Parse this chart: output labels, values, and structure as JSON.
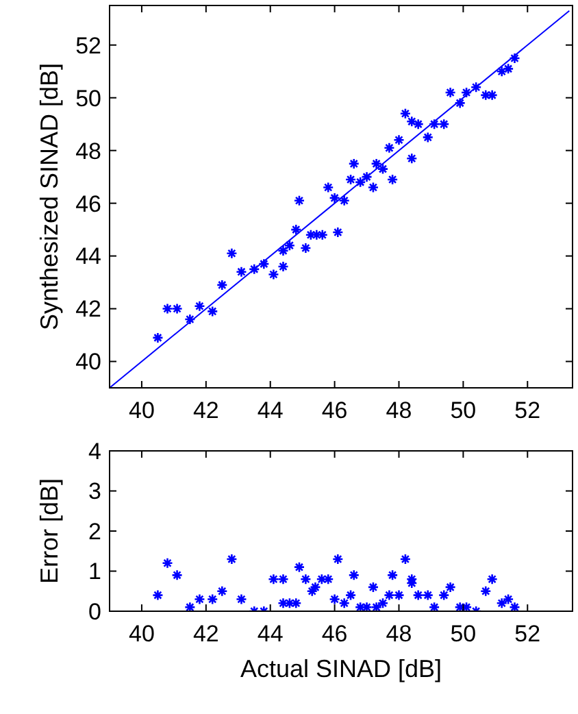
{
  "chart_data": [
    {
      "type": "scatter",
      "ylabel": "Synthesized SINAD [dB]",
      "xlim": [
        39,
        53.4
      ],
      "ylim": [
        39,
        53.5
      ],
      "xticks": [
        40,
        42,
        44,
        46,
        48,
        50,
        52
      ],
      "yticks": [
        40,
        42,
        44,
        46,
        48,
        50,
        52
      ],
      "series": [
        {
          "color": "#0000ff",
          "marker": "cross",
          "x": [
            40.5,
            40.8,
            41.1,
            41.5,
            41.8,
            42.2,
            42.5,
            42.8,
            43.1,
            43.5,
            43.8,
            44.1,
            44.4,
            44.4,
            44.6,
            44.8,
            44.9,
            45.1,
            45.26,
            45.44,
            45.62,
            45.8,
            46.0,
            46.1,
            46.3,
            46.5,
            46.6,
            46.8,
            47.0,
            47.2,
            47.3,
            47.5,
            47.7,
            47.8,
            48.0,
            48.2,
            48.4,
            48.4,
            48.6,
            48.9,
            49.1,
            49.4,
            49.6,
            49.9,
            50.1,
            50.4,
            50.7,
            50.9,
            51.2,
            51.4,
            51.6
          ],
          "values": [
            40.9,
            42.0,
            42.0,
            41.6,
            42.1,
            41.9,
            42.9,
            44.1,
            43.4,
            43.5,
            43.7,
            43.3,
            43.6,
            44.2,
            44.4,
            45.0,
            46.1,
            44.3,
            44.8,
            44.8,
            44.8,
            46.6,
            46.2,
            44.9,
            46.1,
            46.9,
            47.5,
            46.8,
            47.0,
            46.6,
            47.5,
            47.3,
            48.1,
            46.9,
            48.4,
            49.4,
            49.1,
            47.7,
            49.0,
            48.5,
            49.0,
            49.0,
            50.2,
            49.8,
            50.2,
            50.4,
            50.1,
            50.1,
            51.0,
            51.1,
            51.5
          ]
        },
        {
          "type": "line",
          "color": "#0000ff",
          "marker": "none",
          "x": [
            39,
            53.3
          ],
          "values": [
            39,
            53.3
          ]
        }
      ]
    },
    {
      "type": "scatter",
      "xlabel": "Actual SINAD [dB]",
      "ylabel": "Error [dB]",
      "xlim": [
        39,
        53.4
      ],
      "ylim": [
        0,
        4
      ],
      "xticks": [
        40,
        42,
        44,
        46,
        48,
        50,
        52
      ],
      "yticks": [
        0,
        1,
        2,
        3,
        4
      ],
      "series": [
        {
          "color": "#0000ff",
          "marker": "cross",
          "x": [
            40.5,
            40.8,
            41.1,
            41.5,
            41.8,
            42.2,
            42.5,
            42.8,
            43.1,
            43.5,
            43.8,
            44.1,
            44.4,
            44.4,
            44.6,
            44.8,
            44.9,
            45.1,
            45.3,
            45.4,
            45.6,
            45.8,
            46.0,
            46.1,
            46.3,
            46.5,
            46.6,
            46.8,
            47.0,
            47.2,
            47.3,
            47.5,
            47.7,
            47.8,
            48.0,
            48.2,
            48.4,
            48.4,
            48.6,
            48.9,
            49.1,
            49.4,
            49.6,
            49.9,
            50.1,
            50.4,
            50.7,
            50.9,
            51.2,
            51.4,
            51.6
          ],
          "values": [
            0.4,
            1.2,
            0.9,
            0.1,
            0.3,
            0.3,
            0.5,
            1.3,
            0.3,
            0.0,
            0.0,
            0.8,
            0.8,
            0.2,
            0.2,
            0.2,
            1.1,
            0.8,
            0.5,
            0.6,
            0.8,
            0.8,
            0.3,
            1.3,
            0.2,
            0.4,
            0.9,
            0.1,
            0.1,
            0.6,
            0.1,
            0.2,
            0.4,
            0.9,
            0.4,
            1.3,
            0.8,
            0.7,
            0.4,
            0.4,
            0.1,
            0.4,
            0.6,
            0.1,
            0.1,
            0.0,
            0.5,
            0.8,
            0.2,
            0.3,
            0.1
          ]
        }
      ]
    }
  ]
}
